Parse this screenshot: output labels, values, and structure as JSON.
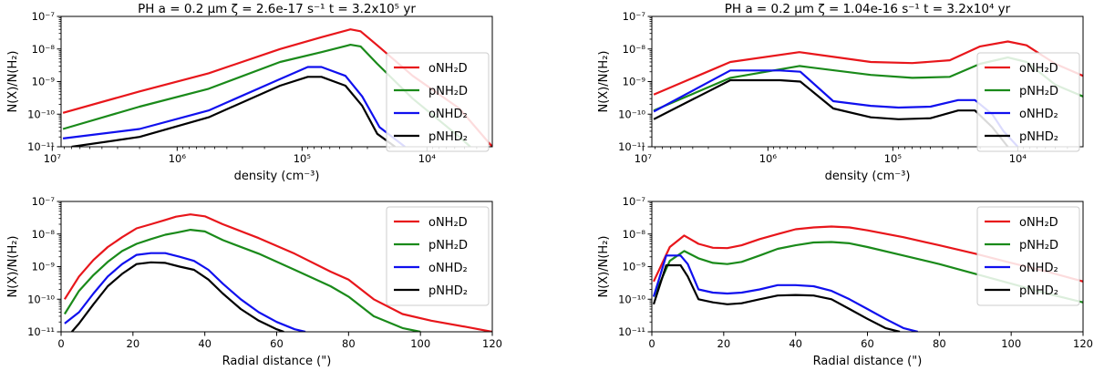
{
  "colors": {
    "oNH2D": "#e8161b",
    "pNH2D": "#1a8a1a",
    "oNHD2": "#1010ee",
    "pNHD2": "#000000"
  },
  "chart_data": [
    {
      "type": "line",
      "title": "PH  a = 0.2 μm  ζ = 2.6e-17 s⁻¹  t = 3.2x10⁵ yr",
      "xlabel": "density (cm⁻³)",
      "ylabel": "N(X)/N(H₂)",
      "xscale": "log",
      "xinverted": true,
      "xlim": [
        8500000.0,
        3000.0
      ],
      "ylim": [
        1e-11,
        1e-07
      ],
      "yscale": "log",
      "xticks": [
        {
          "v": 10000000.0,
          "label": "10⁷"
        },
        {
          "v": 1000000.0,
          "label": "10⁶"
        },
        {
          "v": 100000.0,
          "label": "10⁵"
        },
        {
          "v": 10000.0,
          "label": "10⁴"
        }
      ],
      "yticks": [
        {
          "v": 1e-07,
          "label": "10⁻⁷"
        },
        {
          "v": 1e-08,
          "label": "10⁻⁸"
        },
        {
          "v": 1e-09,
          "label": "10⁻⁹"
        },
        {
          "v": 1e-10,
          "label": "10⁻¹⁰"
        },
        {
          "v": 1e-11,
          "label": "10⁻¹¹"
        }
      ],
      "legend": "right",
      "series": [
        {
          "key": "oNH2D",
          "name": "oNH₂D",
          "x": [
            8200000.0,
            2000000.0,
            560000.0,
            150000.0,
            70000.0,
            41000.0,
            34000.0,
            25000.0,
            13000.0,
            5500.0,
            3000.0
          ],
          "y": [
            1.1e-10,
            5e-10,
            1.8e-09,
            1e-08,
            2.3e-08,
            4e-08,
            3.5e-08,
            1.3e-08,
            1.5e-09,
            1.5e-10,
            1e-11
          ]
        },
        {
          "key": "pNH2D",
          "name": "pNH₂D",
          "x": [
            8200000.0,
            2000000.0,
            560000.0,
            150000.0,
            70000.0,
            41000.0,
            34000.0,
            25000.0,
            13000.0,
            5500.0,
            4500.0
          ],
          "y": [
            3.5e-11,
            1.7e-10,
            6e-10,
            4e-09,
            8e-09,
            1.35e-08,
            1.2e-08,
            3.5e-09,
            3e-10,
            2e-11,
            1e-11
          ]
        },
        {
          "key": "oNHD2",
          "name": "oNHD₂",
          "x": [
            8200000.0,
            2000000.0,
            560000.0,
            150000.0,
            90000.0,
            70000.0,
            45000.0,
            33000.0,
            24000.0,
            15000.0
          ],
          "y": [
            1.8e-11,
            3.5e-11,
            1.3e-10,
            1.2e-09,
            2.8e-09,
            2.8e-09,
            1.5e-09,
            3.5e-10,
            4e-11,
            1e-11
          ]
        },
        {
          "key": "pNHD2",
          "name": "pNHD₂",
          "x": [
            7000000.0,
            2000000.0,
            560000.0,
            150000.0,
            90000.0,
            70000.0,
            45000.0,
            33000.0,
            25000.0,
            18000.0
          ],
          "y": [
            1e-11,
            2e-11,
            8e-11,
            7.5e-10,
            1.4e-09,
            1.4e-09,
            7.5e-10,
            1.8e-10,
            2.5e-11,
            1e-11
          ]
        }
      ]
    },
    {
      "type": "line",
      "title": "PH  a = 0.2 μm  ζ = 1.04e-16 s⁻¹  t = 3.2x10⁴ yr",
      "xlabel": "density (cm⁻³)",
      "ylabel": "N(X)/N(H₂)",
      "xscale": "log",
      "xinverted": true,
      "xlim": [
        8500000.0,
        3000.0
      ],
      "ylim": [
        1e-11,
        1e-07
      ],
      "yscale": "log",
      "xticks": [
        {
          "v": 10000000.0,
          "label": "10⁷"
        },
        {
          "v": 1000000.0,
          "label": "10⁶"
        },
        {
          "v": 100000.0,
          "label": "10⁵"
        },
        {
          "v": 10000.0,
          "label": "10⁴"
        }
      ],
      "yticks": [
        {
          "v": 1e-07,
          "label": "10⁻⁷"
        },
        {
          "v": 1e-08,
          "label": "10⁻⁸"
        },
        {
          "v": 1e-09,
          "label": "10⁻⁹"
        },
        {
          "v": 1e-10,
          "label": "10⁻¹⁰"
        },
        {
          "v": 1e-11,
          "label": "10⁻¹¹"
        }
      ],
      "legend": "right",
      "series": [
        {
          "key": "oNH2D",
          "name": "oNH₂D",
          "x": [
            8200000.0,
            2000000.0,
            560000.0,
            150000.0,
            70000.0,
            35000.0,
            20000.0,
            12000.0,
            8500.0,
            5000.0,
            3000.0
          ],
          "y": [
            4e-10,
            4e-09,
            8e-09,
            4e-09,
            3.7e-09,
            4.5e-09,
            1.2e-08,
            1.7e-08,
            1.3e-08,
            3.5e-09,
            1.5e-09
          ]
        },
        {
          "key": "pNH2D",
          "name": "pNH₂D",
          "x": [
            8200000.0,
            2000000.0,
            560000.0,
            150000.0,
            70000.0,
            35000.0,
            20000.0,
            12000.0,
            8500.0,
            5000.0,
            3000.0
          ],
          "y": [
            1.3e-10,
            1.3e-09,
            3e-09,
            1.6e-09,
            1.3e-09,
            1.4e-09,
            3.5e-09,
            5.5e-09,
            4e-09,
            8e-10,
            3.5e-10
          ]
        },
        {
          "key": "oNHD2",
          "name": "oNHD₂",
          "x": [
            8200000.0,
            2000000.0,
            800000.0,
            550000.0,
            300000.0,
            150000.0,
            90000.0,
            50000.0,
            30000.0,
            22000.0,
            16000.0,
            13000.0,
            10000.0
          ],
          "y": [
            1.2e-10,
            2.2e-09,
            2.2e-09,
            2e-09,
            2.5e-10,
            1.8e-10,
            1.6e-10,
            1.7e-10,
            2.7e-10,
            2.7e-10,
            1e-10,
            3e-11,
            1e-11
          ]
        },
        {
          "key": "pNHD2",
          "name": "pNHD₂",
          "x": [
            8200000.0,
            2000000.0,
            800000.0,
            550000.0,
            300000.0,
            150000.0,
            90000.0,
            50000.0,
            30000.0,
            22000.0,
            16000.0,
            12000.0
          ],
          "y": [
            7e-11,
            1.1e-09,
            1.1e-09,
            1e-09,
            1.5e-10,
            8e-11,
            7e-11,
            7.5e-11,
            1.3e-10,
            1.3e-10,
            4e-11,
            1e-11
          ]
        }
      ]
    },
    {
      "type": "line",
      "title": "",
      "xlabel": "Radial distance (\")",
      "ylabel": "N(X)/N(H₂)",
      "xscale": "linear",
      "xinverted": false,
      "xlim": [
        0,
        120
      ],
      "ylim": [
        1e-11,
        1e-07
      ],
      "yscale": "log",
      "xticks": [
        {
          "v": 0,
          "label": "0"
        },
        {
          "v": 20,
          "label": "20"
        },
        {
          "v": 40,
          "label": "40"
        },
        {
          "v": 60,
          "label": "60"
        },
        {
          "v": 80,
          "label": "80"
        },
        {
          "v": 100,
          "label": "100"
        },
        {
          "v": 120,
          "label": "120"
        }
      ],
      "yticks": [
        {
          "v": 1e-07,
          "label": "10⁻⁷"
        },
        {
          "v": 1e-08,
          "label": "10⁻⁸"
        },
        {
          "v": 1e-09,
          "label": "10⁻⁹"
        },
        {
          "v": 1e-10,
          "label": "10⁻¹⁰"
        },
        {
          "v": 1e-11,
          "label": "10⁻¹¹"
        }
      ],
      "legend": "top-right",
      "series": [
        {
          "key": "oNH2D",
          "name": "oNH₂D",
          "x": [
            1,
            5,
            9,
            13,
            17,
            21,
            25,
            29,
            32,
            36,
            40,
            45,
            55,
            65,
            75,
            80,
            87,
            95,
            103,
            113,
            120
          ],
          "y": [
            1e-10,
            5e-10,
            1.6e-09,
            4e-09,
            8e-09,
            1.5e-08,
            2e-08,
            2.7e-08,
            3.4e-08,
            4e-08,
            3.5e-08,
            2e-08,
            7.5e-09,
            2.5e-09,
            7e-10,
            4e-10,
            1e-10,
            3.5e-11,
            2.2e-11,
            1.4e-11,
            1e-11
          ]
        },
        {
          "key": "pNH2D",
          "name": "pNH₂D",
          "x": [
            1,
            5,
            9,
            13,
            17,
            21,
            25,
            29,
            32,
            36,
            40,
            45,
            55,
            65,
            75,
            80,
            87,
            95,
            100
          ],
          "y": [
            3.5e-11,
            1.8e-10,
            5.5e-10,
            1.4e-09,
            3e-09,
            5e-09,
            7e-09,
            9.5e-09,
            1.1e-08,
            1.35e-08,
            1.2e-08,
            6.5e-09,
            2.5e-09,
            8e-10,
            2.5e-10,
            1.2e-10,
            3e-11,
            1.3e-11,
            1e-11
          ]
        },
        {
          "key": "oNHD2",
          "name": "oNHD₂",
          "x": [
            1,
            5,
            9,
            13,
            17,
            21,
            25,
            29,
            33,
            37,
            41,
            45,
            50,
            55,
            60,
            65,
            68
          ],
          "y": [
            1.8e-11,
            4e-11,
            1.5e-10,
            5e-10,
            1.2e-09,
            2.3e-09,
            2.6e-09,
            2.6e-09,
            2e-09,
            1.5e-09,
            8e-10,
            3e-10,
            1e-10,
            4e-11,
            2e-11,
            1.2e-11,
            1e-11
          ]
        },
        {
          "key": "pNHD2",
          "name": "pNHD₂",
          "x": [
            3,
            5,
            9,
            13,
            17,
            21,
            25,
            29,
            33,
            37,
            41,
            45,
            50,
            55,
            60,
            62
          ],
          "y": [
            1e-11,
            1.8e-11,
            7e-11,
            2.5e-10,
            6e-10,
            1.2e-09,
            1.35e-09,
            1.3e-09,
            1e-09,
            8e-10,
            4e-10,
            1.5e-10,
            5e-11,
            2.2e-11,
            1.2e-11,
            1e-11
          ]
        }
      ]
    },
    {
      "type": "line",
      "title": "",
      "xlabel": "Radial distance (\")",
      "ylabel": "N(X)/N(H₂)",
      "xscale": "linear",
      "xinverted": false,
      "xlim": [
        0,
        120
      ],
      "ylim": [
        1e-11,
        1e-07
      ],
      "yscale": "log",
      "xticks": [
        {
          "v": 0,
          "label": "0"
        },
        {
          "v": 20,
          "label": "20"
        },
        {
          "v": 40,
          "label": "40"
        },
        {
          "v": 60,
          "label": "60"
        },
        {
          "v": 80,
          "label": "80"
        },
        {
          "v": 100,
          "label": "100"
        },
        {
          "v": 120,
          "label": "120"
        }
      ],
      "yticks": [
        {
          "v": 1e-07,
          "label": "10⁻⁷"
        },
        {
          "v": 1e-08,
          "label": "10⁻⁸"
        },
        {
          "v": 1e-09,
          "label": "10⁻⁹"
        },
        {
          "v": 1e-10,
          "label": "10⁻¹⁰"
        },
        {
          "v": 1e-11,
          "label": "10⁻¹¹"
        }
      ],
      "legend": "top-right",
      "series": [
        {
          "key": "oNH2D",
          "name": "oNH₂D",
          "x": [
            0.5,
            5,
            9,
            13,
            17,
            21,
            25,
            30,
            35,
            40,
            45,
            50,
            55,
            60,
            70,
            80,
            90,
            100,
            110,
            120
          ],
          "y": [
            3.5e-10,
            4e-09,
            9e-09,
            5e-09,
            3.8e-09,
            3.7e-09,
            4.5e-09,
            7e-09,
            1e-08,
            1.4e-08,
            1.6e-08,
            1.7e-08,
            1.6e-08,
            1.3e-08,
            8e-09,
            4.5e-09,
            2.5e-09,
            1.3e-09,
            7e-10,
            3.5e-10
          ]
        },
        {
          "key": "pNH2D",
          "name": "pNH₂D",
          "x": [
            0.5,
            5,
            9,
            13,
            17,
            21,
            25,
            30,
            35,
            40,
            45,
            50,
            55,
            60,
            70,
            80,
            90,
            100,
            110,
            120
          ],
          "y": [
            1.2e-10,
            1.5e-09,
            3e-09,
            1.8e-09,
            1.3e-09,
            1.2e-09,
            1.4e-09,
            2.2e-09,
            3.5e-09,
            4.5e-09,
            5.5e-09,
            5.7e-09,
            5.2e-09,
            4e-09,
            2.2e-09,
            1.2e-09,
            6e-10,
            3e-10,
            1.5e-10,
            8e-11
          ]
        },
        {
          "key": "oNHD2",
          "name": "oNHD₂",
          "x": [
            0.5,
            4,
            8,
            10,
            13,
            17,
            21,
            25,
            30,
            35,
            40,
            45,
            50,
            55,
            60,
            65,
            70,
            74
          ],
          "y": [
            1.2e-10,
            2.2e-09,
            2.2e-09,
            1.2e-09,
            2e-10,
            1.6e-10,
            1.5e-10,
            1.6e-10,
            2e-10,
            2.7e-10,
            2.7e-10,
            2.5e-10,
            1.8e-10,
            1e-10,
            5e-11,
            2.5e-11,
            1.3e-11,
            1e-11
          ]
        },
        {
          "key": "pNHD2",
          "name": "pNHD₂",
          "x": [
            0.5,
            4,
            8,
            10,
            13,
            17,
            21,
            25,
            30,
            35,
            40,
            45,
            50,
            55,
            60,
            65,
            69
          ],
          "y": [
            7e-11,
            1.1e-09,
            1.1e-09,
            5e-10,
            1e-10,
            8e-11,
            7e-11,
            7.5e-11,
            1e-10,
            1.3e-10,
            1.35e-10,
            1.3e-10,
            1e-10,
            5e-11,
            2.5e-11,
            1.3e-11,
            1e-11
          ]
        }
      ]
    }
  ]
}
